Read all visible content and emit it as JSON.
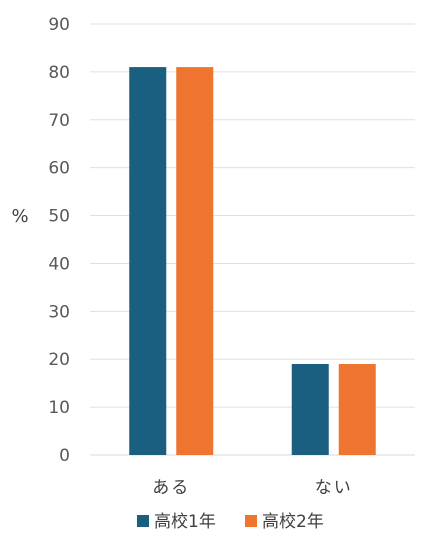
{
  "chart_data": {
    "type": "bar",
    "categories": [
      "ある",
      "ない"
    ],
    "series": [
      {
        "name": "高校1年",
        "values": [
          81,
          19
        ]
      },
      {
        "name": "高校2年",
        "values": [
          81,
          19
        ]
      }
    ],
    "ylabel": "%",
    "xlabel": "",
    "ylim": [
      0,
      90
    ],
    "yticks": [
      0,
      10,
      20,
      30,
      40,
      50,
      60,
      70,
      80,
      90
    ],
    "grid": true,
    "legend_position": "bottom",
    "colors": [
      "#1a5e80",
      "#ee7430"
    ]
  }
}
